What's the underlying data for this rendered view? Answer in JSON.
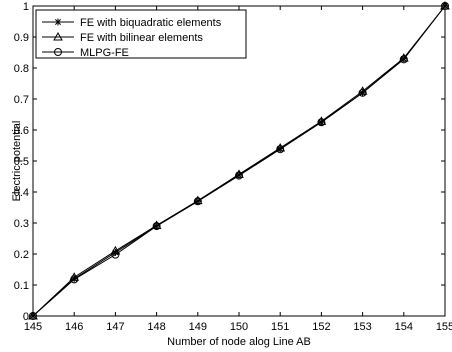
{
  "chart_data": {
    "type": "line",
    "xlabel": "Number of node alog Line AB",
    "ylabel": "Electric potential",
    "xlim": [
      145,
      155
    ],
    "ylim": [
      0,
      1
    ],
    "x_ticks": [
      "145",
      "146",
      "147",
      "148",
      "149",
      "150",
      "151",
      "152",
      "153",
      "154",
      "155"
    ],
    "y_ticks": [
      "0",
      "0.1",
      "0.2",
      "0.3",
      "0.4",
      "0.5",
      "0.6",
      "0.7",
      "0.8",
      "0.9",
      "1"
    ],
    "grid": false,
    "legend_position": "top-left",
    "x": [
      145,
      146,
      147,
      148,
      149,
      150,
      151,
      152,
      153,
      154,
      155
    ],
    "series": [
      {
        "name": "FE with biquadratic elements",
        "marker": "asterisk",
        "color": "#000000",
        "values": [
          0,
          0.12,
          0.205,
          0.29,
          0.37,
          0.455,
          0.54,
          0.625,
          0.72,
          0.83,
          1.0
        ]
      },
      {
        "name": "FE with bilinear elements",
        "marker": "triangle",
        "color": "#000000",
        "values": [
          0,
          0.125,
          0.21,
          0.292,
          0.372,
          0.457,
          0.542,
          0.628,
          0.725,
          0.832,
          1.0
        ]
      },
      {
        "name": "MLPG-FE",
        "marker": "circle",
        "color": "#000000",
        "values": [
          0,
          0.118,
          0.198,
          0.29,
          0.37,
          0.453,
          0.538,
          0.625,
          0.72,
          0.828,
          1.0
        ]
      }
    ]
  }
}
